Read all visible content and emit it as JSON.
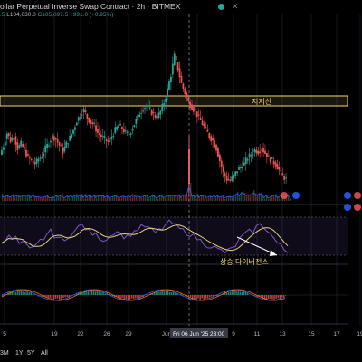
{
  "header": {
    "title": "ollar Perpetual Inverse Swap Contract · 2h · BITMEX",
    "ohlc_prefix": ".5",
    "low": "L104,030.0",
    "close": "C105,097.5 +991.0 (+0.95%)",
    "close_icon": "close-icon"
  },
  "annotations": {
    "support_label": "지지선",
    "divergence_label": "상승 다이버전스"
  },
  "x_axis": {
    "ticks": [
      "5",
      "19",
      "22",
      "26",
      "29",
      "Jun",
      "3",
      "9",
      "11",
      "13",
      "15",
      "17",
      "19"
    ],
    "crosshair_label": "Fri 06 Jun '25   23:00"
  },
  "timeframes": [
    "3M",
    "1Y",
    "5Y",
    "All"
  ],
  "colors": {
    "up": "#26a69a",
    "down": "#ef5350",
    "support_zone": "#f5d76e",
    "rsi_line": "#7e57c2",
    "rsi_ma": "#e6d37c",
    "volume_line": "#2962ff"
  },
  "chart_data": {
    "type": "candlestick",
    "title": "",
    "panes": [
      "price",
      "volume",
      "rsi",
      "macd"
    ],
    "crosshair_at": "Fri 06 Jun '25 23:00",
    "price_path_approx": [
      0.26,
      0.32,
      0.4,
      0.35,
      0.38,
      0.3,
      0.33,
      0.29,
      0.24,
      0.22,
      0.2,
      0.23,
      0.25,
      0.3,
      0.34,
      0.38,
      0.36,
      0.32,
      0.28,
      0.33,
      0.37,
      0.42,
      0.48,
      0.52,
      0.55,
      0.5,
      0.47,
      0.45,
      0.4,
      0.38,
      0.36,
      0.34,
      0.38,
      0.42,
      0.45,
      0.43,
      0.4,
      0.39,
      0.44,
      0.48,
      0.53,
      0.56,
      0.58,
      0.55,
      0.52,
      0.5,
      0.54,
      0.6,
      0.68,
      0.78,
      0.9,
      0.82,
      0.72,
      0.66,
      0.6,
      0.57,
      0.54,
      0.5,
      0.46,
      0.42,
      0.38,
      0.35,
      0.3,
      0.22,
      0.14,
      0.1,
      0.09,
      0.12,
      0.16,
      0.18,
      0.2,
      0.24,
      0.26,
      0.29,
      0.28,
      0.3,
      0.27,
      0.24,
      0.22,
      0.2,
      0.16,
      0.12,
      0.1
    ],
    "rsi_path_approx": [
      0.35,
      0.45,
      0.55,
      0.4,
      0.5,
      0.3,
      0.38,
      0.28,
      0.2,
      0.22,
      0.3,
      0.4,
      0.45,
      0.55,
      0.6,
      0.52,
      0.48,
      0.42,
      0.38,
      0.5,
      0.58,
      0.62,
      0.7,
      0.75,
      0.68,
      0.6,
      0.55,
      0.52,
      0.48,
      0.42,
      0.45,
      0.5,
      0.58,
      0.62,
      0.55,
      0.5,
      0.48,
      0.55,
      0.6,
      0.66,
      0.7,
      0.72,
      0.68,
      0.62,
      0.58,
      0.62,
      0.68,
      0.75,
      0.8,
      0.78,
      0.72,
      0.66,
      0.62,
      0.58,
      0.55,
      0.5,
      0.45,
      0.4,
      0.35,
      0.3,
      0.28,
      0.25,
      0.2,
      0.18,
      0.15,
      0.18,
      0.22,
      0.3,
      0.4,
      0.5,
      0.55,
      0.6,
      0.62,
      0.7,
      0.75,
      0.72,
      0.65,
      0.55,
      0.45,
      0.35,
      0.28,
      0.2,
      0.15
    ]
  }
}
